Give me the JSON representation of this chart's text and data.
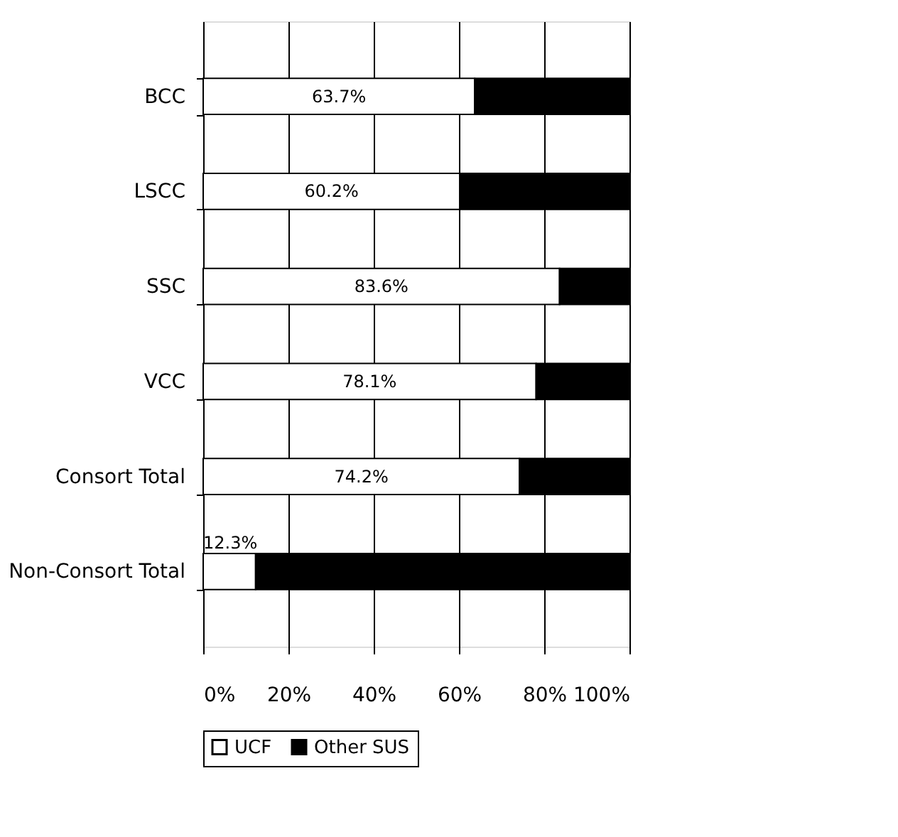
{
  "chart_data": {
    "type": "bar",
    "orientation": "horizontal",
    "stacked": true,
    "categories": [
      "BCC",
      "LSCC",
      "SSC",
      "VCC",
      "Consort Total",
      "Non-Consort Total"
    ],
    "series": [
      {
        "name": "UCF",
        "color": "#ffffff",
        "values": [
          63.7,
          60.2,
          83.6,
          78.1,
          74.2,
          12.3
        ],
        "value_labels": [
          "63.7%",
          "60.2%",
          "83.6%",
          "78.1%",
          "74.2%",
          "12.3%"
        ]
      },
      {
        "name": "Other SUS",
        "color": "#000000",
        "values": [
          36.3,
          39.8,
          16.4,
          21.9,
          25.8,
          87.7
        ]
      }
    ],
    "xlim": [
      0,
      100
    ],
    "xticks": [
      {
        "value": 0,
        "label": "0%"
      },
      {
        "value": 20,
        "label": "20%"
      },
      {
        "value": 40,
        "label": "40%"
      },
      {
        "value": 60,
        "label": "60%"
      },
      {
        "value": 80,
        "label": "80%"
      },
      {
        "value": 100,
        "label": "100%"
      }
    ],
    "grid": "x",
    "legend": "bottom"
  }
}
